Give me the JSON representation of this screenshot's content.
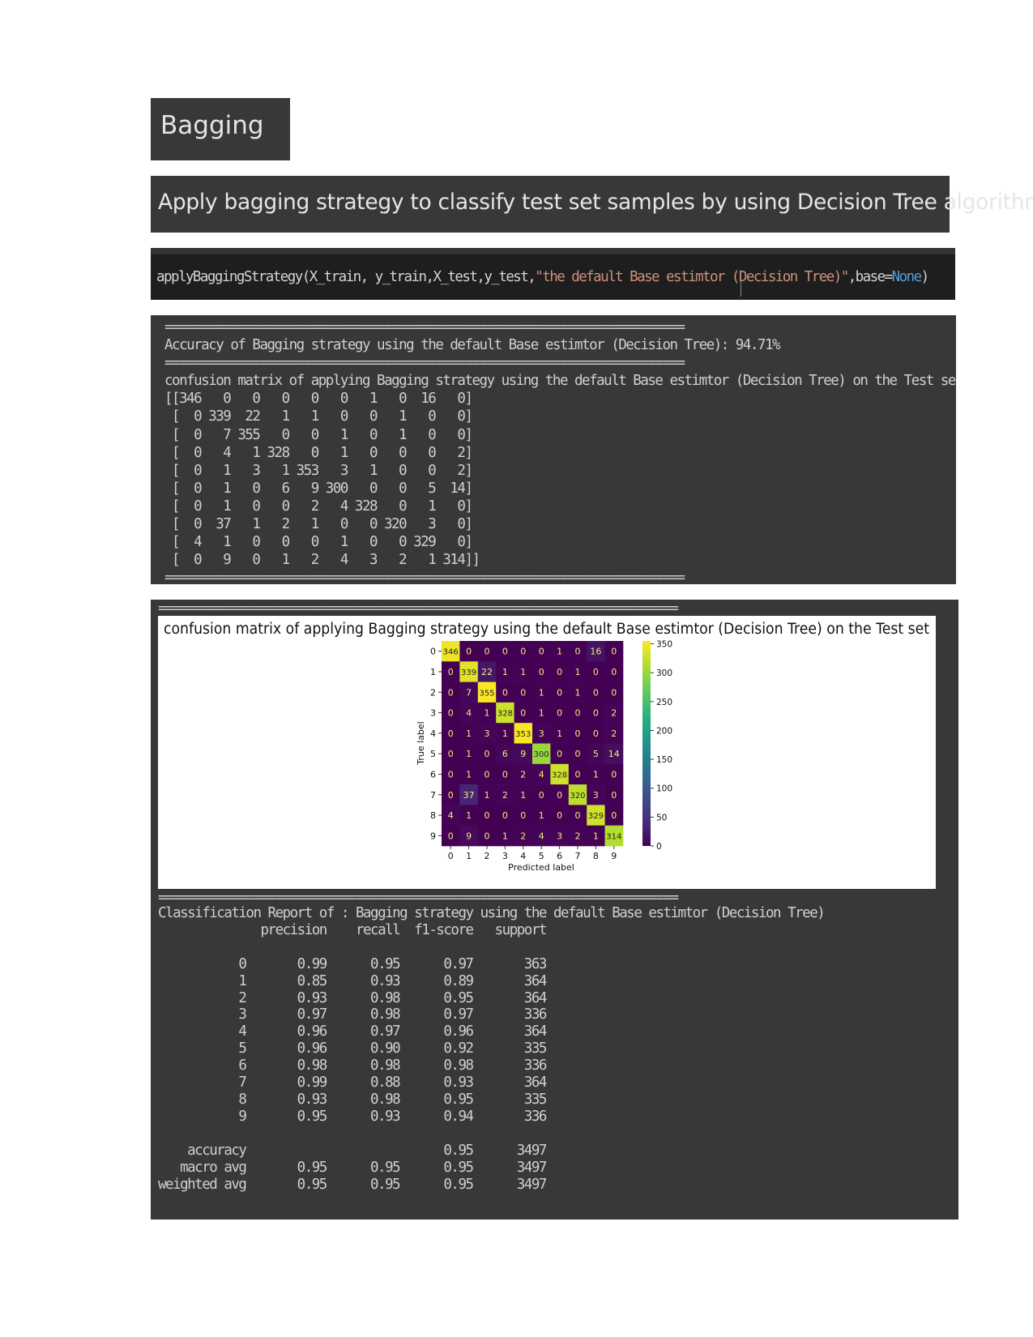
{
  "heading": "Bagging",
  "subheading": "Apply bagging strategy to classify test set samples by using Decision Tree algorithm",
  "code": {
    "func": "applyBaggingStrategy(X_train, y_train,X_test,y_test,",
    "string_arg": "\"the default Base estimtor (Decision Tree)\"",
    "kwarg": ",base=",
    "value": "None",
    "close": ")"
  },
  "output1": {
    "separator": "=======================================================================",
    "accuracy_line": "Accuracy of Bagging strategy using the default Base estimtor (Decision Tree): 94.71%",
    "cm_title": "confusion matrix of applying Bagging strategy using the default Base estimtor (Decision Tree) on the Test set",
    "matrix_text": "[[346   0   0   0   0   0   1   0  16   0]\n [  0 339  22   1   1   0   0   1   0   0]\n [  0   7 355   0   0   1   0   1   0   0]\n [  0   4   1 328   0   1   0   0   0   2]\n [  0   1   3   1 353   3   1   0   0   2]\n [  0   1   0   6   9 300   0   0   5  14]\n [  0   1   0   0   2   4 328   0   1   0]\n [  0  37   1   2   1   0   0 320   3   0]\n [  4   1   0   0   0   1   0   0 329   0]\n [  0   9   0   1   2   4   3   2   1 314]]"
  },
  "output2": {
    "separator": "=======================================================================",
    "report_text": "Classification Report of : Bagging strategy using the default Base estimtor (Decision Tree)\n              precision    recall  f1-score   support\n\n           0       0.99      0.95      0.97       363\n           1       0.85      0.93      0.89       364\n           2       0.93      0.98      0.95       364\n           3       0.97      0.98      0.97       336\n           4       0.96      0.97      0.96       364\n           5       0.96      0.90      0.92       335\n           6       0.98      0.98      0.98       336\n           7       0.99      0.88      0.93       364\n           8       0.93      0.98      0.95       335\n           9       0.95      0.93      0.94       336\n\n    accuracy                           0.95      3497\n   macro avg       0.95      0.95      0.95      3497\nweighted avg       0.95      0.95      0.95      3497"
  },
  "chart_data": {
    "type": "heatmap",
    "title": "confusion matrix of applying Bagging strategy using the default Base estimtor (Decision Tree) on the Test set",
    "xlabel": "Predicted label",
    "ylabel": "True label",
    "x_categories": [
      "0",
      "1",
      "2",
      "3",
      "4",
      "5",
      "6",
      "7",
      "8",
      "9"
    ],
    "y_categories": [
      "0",
      "1",
      "2",
      "3",
      "4",
      "5",
      "6",
      "7",
      "8",
      "9"
    ],
    "values": [
      [
        346,
        0,
        0,
        0,
        0,
        0,
        1,
        0,
        16,
        0
      ],
      [
        0,
        339,
        22,
        1,
        1,
        0,
        0,
        1,
        0,
        0
      ],
      [
        0,
        7,
        355,
        0,
        0,
        1,
        0,
        1,
        0,
        0
      ],
      [
        0,
        4,
        1,
        328,
        0,
        1,
        0,
        0,
        0,
        2
      ],
      [
        0,
        1,
        3,
        1,
        353,
        3,
        1,
        0,
        0,
        2
      ],
      [
        0,
        1,
        0,
        6,
        9,
        300,
        0,
        0,
        5,
        14
      ],
      [
        0,
        1,
        0,
        0,
        2,
        4,
        328,
        0,
        1,
        0
      ],
      [
        0,
        37,
        1,
        2,
        1,
        0,
        0,
        320,
        3,
        0
      ],
      [
        4,
        1,
        0,
        0,
        0,
        1,
        0,
        0,
        329,
        0
      ],
      [
        0,
        9,
        0,
        1,
        2,
        4,
        3,
        2,
        1,
        314
      ]
    ],
    "colormap": "viridis",
    "colorbar_ticks": [
      "350",
      "300",
      "250",
      "200",
      "150",
      "100",
      "50",
      "0"
    ],
    "colorbar_range": [
      0,
      355
    ]
  }
}
